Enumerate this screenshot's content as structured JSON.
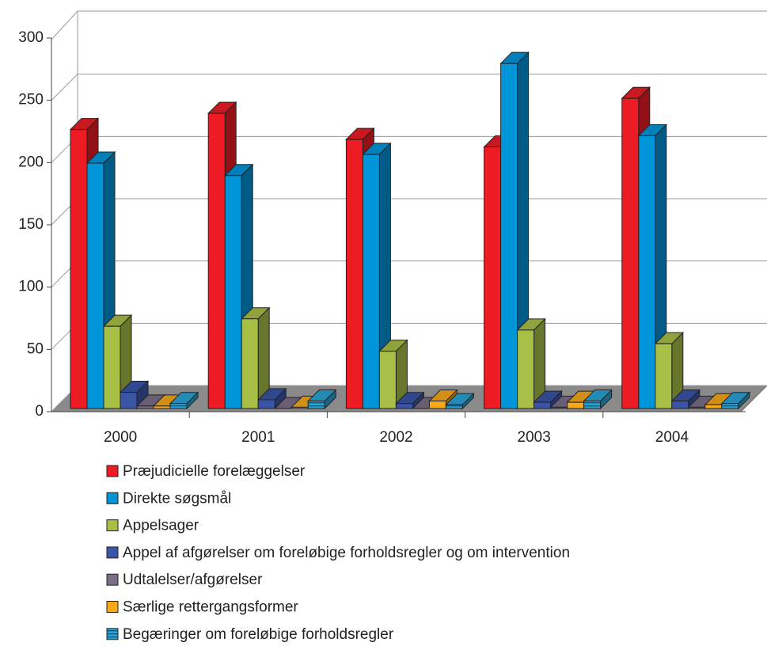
{
  "chart_data": {
    "type": "bar3d",
    "categories": [
      "2000",
      "2001",
      "2002",
      "2003",
      "2004"
    ],
    "series": [
      {
        "name": "Præjudicielle forelæggelser",
        "color": "#ed1c24",
        "values": [
          224,
          237,
          216,
          210,
          249
        ]
      },
      {
        "name": "Direkte søgsmål",
        "color": "#0095d9",
        "values": [
          197,
          187,
          204,
          277,
          219
        ]
      },
      {
        "name": "Appelsager",
        "color": "#a8bf45",
        "values": [
          66,
          72,
          46,
          63,
          52
        ]
      },
      {
        "name": "Appel af afgørelser om foreløbige forholdsregler og om intervention",
        "color": "#3a55a8",
        "values": [
          13,
          7,
          4,
          5,
          6
        ]
      },
      {
        "name": "Udtalelser/afgørelser",
        "color": "#7b6f88",
        "values": [
          2,
          0,
          0,
          1,
          1
        ]
      },
      {
        "name": "Særlige rettergangsformer",
        "color": "#f7a81b",
        "values": [
          2,
          1,
          6,
          5,
          3
        ]
      },
      {
        "name": "Begæringer om foreløbige forholdsregler",
        "color": "#29a3d6",
        "values": [
          4,
          6,
          3,
          6,
          4
        ],
        "striped": true
      }
    ],
    "ylim": [
      0,
      300
    ],
    "yticks": [
      0,
      50,
      100,
      150,
      200,
      250,
      300
    ],
    "grid": true
  }
}
